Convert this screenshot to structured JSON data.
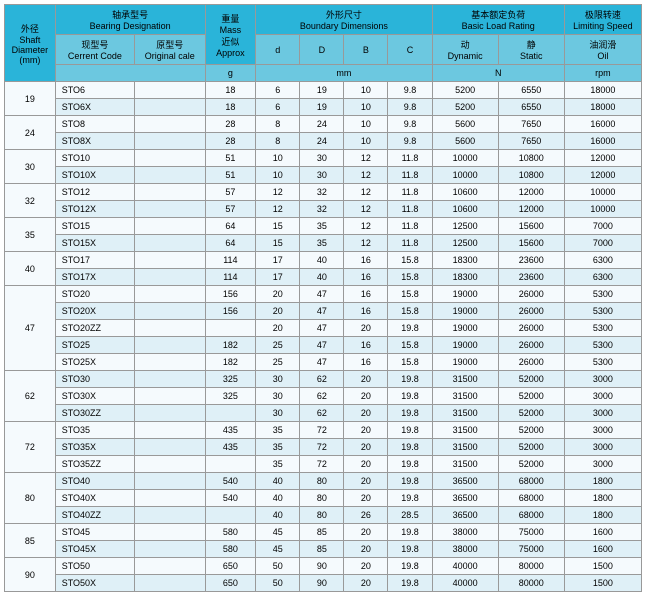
{
  "headers": {
    "shaft_cn": "外径",
    "shaft_en1": "Shaft",
    "shaft_en2": "Diameter",
    "shaft_unit": "(mm)",
    "bearing_cn": "轴承型号",
    "bearing_en": "Bearing Designation",
    "current_cn": "现型号",
    "current_en": "Cerrent Code",
    "original_cn": "原型号",
    "original_en": "Original cale",
    "mass_cn": "重量",
    "mass_en1": "Mass",
    "mass_cn2": "近似",
    "mass_en2": "Approx",
    "dims_cn": "外形尺寸",
    "dims_en": "Boundary Dimensions",
    "d": "d",
    "D": "D",
    "B": "B",
    "C": "C",
    "load_cn": "基本额定负荷",
    "load_en": "Basic Load Rating",
    "dyn_cn": "动",
    "dyn_en": "Dynamic",
    "stat_cn": "静",
    "stat_en": "Static",
    "speed_cn": "极限转速",
    "speed_en": "Limiting Speed",
    "oil_cn": "油润滑",
    "oil_en": "Oil",
    "g": "g",
    "mm": "mm",
    "N": "N",
    "rpm": "rpm"
  },
  "groups": [
    {
      "dia": "19",
      "rows": [
        {
          "code": "STO6",
          "mass": "18",
          "d": "6",
          "D": "19",
          "B": "10",
          "C": "9.8",
          "dyn": "5200",
          "stat": "6550",
          "rpm": "18000"
        },
        {
          "code": "STO6X",
          "mass": "18",
          "d": "6",
          "D": "19",
          "B": "10",
          "C": "9.8",
          "dyn": "5200",
          "stat": "6550",
          "rpm": "18000"
        }
      ]
    },
    {
      "dia": "24",
      "rows": [
        {
          "code": "STO8",
          "mass": "28",
          "d": "8",
          "D": "24",
          "B": "10",
          "C": "9.8",
          "dyn": "5600",
          "stat": "7650",
          "rpm": "16000"
        },
        {
          "code": "STO8X",
          "mass": "28",
          "d": "8",
          "D": "24",
          "B": "10",
          "C": "9.8",
          "dyn": "5600",
          "stat": "7650",
          "rpm": "16000"
        }
      ]
    },
    {
      "dia": "30",
      "rows": [
        {
          "code": "STO10",
          "mass": "51",
          "d": "10",
          "D": "30",
          "B": "12",
          "C": "11.8",
          "dyn": "10000",
          "stat": "10800",
          "rpm": "12000"
        },
        {
          "code": "STO10X",
          "mass": "51",
          "d": "10",
          "D": "30",
          "B": "12",
          "C": "11.8",
          "dyn": "10000",
          "stat": "10800",
          "rpm": "12000"
        }
      ]
    },
    {
      "dia": "32",
      "rows": [
        {
          "code": "STO12",
          "mass": "57",
          "d": "12",
          "D": "32",
          "B": "12",
          "C": "11.8",
          "dyn": "10600",
          "stat": "12000",
          "rpm": "10000"
        },
        {
          "code": "STO12X",
          "mass": "57",
          "d": "12",
          "D": "32",
          "B": "12",
          "C": "11.8",
          "dyn": "10600",
          "stat": "12000",
          "rpm": "10000"
        }
      ]
    },
    {
      "dia": "35",
      "rows": [
        {
          "code": "STO15",
          "mass": "64",
          "d": "15",
          "D": "35",
          "B": "12",
          "C": "11.8",
          "dyn": "12500",
          "stat": "15600",
          "rpm": "7000"
        },
        {
          "code": "STO15X",
          "mass": "64",
          "d": "15",
          "D": "35",
          "B": "12",
          "C": "11.8",
          "dyn": "12500",
          "stat": "15600",
          "rpm": "7000"
        }
      ]
    },
    {
      "dia": "40",
      "rows": [
        {
          "code": "STO17",
          "mass": "114",
          "d": "17",
          "D": "40",
          "B": "16",
          "C": "15.8",
          "dyn": "18300",
          "stat": "23600",
          "rpm": "6300"
        },
        {
          "code": "STO17X",
          "mass": "114",
          "d": "17",
          "D": "40",
          "B": "16",
          "C": "15.8",
          "dyn": "18300",
          "stat": "23600",
          "rpm": "6300"
        }
      ]
    },
    {
      "dia": "47",
      "rows": [
        {
          "code": "STO20",
          "mass": "156",
          "d": "20",
          "D": "47",
          "B": "16",
          "C": "15.8",
          "dyn": "19000",
          "stat": "26000",
          "rpm": "5300"
        },
        {
          "code": "STO20X",
          "mass": "156",
          "d": "20",
          "D": "47",
          "B": "16",
          "C": "15.8",
          "dyn": "19000",
          "stat": "26000",
          "rpm": "5300"
        },
        {
          "code": "STO20ZZ",
          "mass": "",
          "d": "20",
          "D": "47",
          "B": "20",
          "C": "19.8",
          "dyn": "19000",
          "stat": "26000",
          "rpm": "5300"
        },
        {
          "code": "STO25",
          "mass": "182",
          "d": "25",
          "D": "47",
          "B": "16",
          "C": "15.8",
          "dyn": "19000",
          "stat": "26000",
          "rpm": "5300"
        },
        {
          "code": "STO25X",
          "mass": "182",
          "d": "25",
          "D": "47",
          "B": "16",
          "C": "15.8",
          "dyn": "19000",
          "stat": "26000",
          "rpm": "5300"
        }
      ]
    },
    {
      "dia": "62",
      "rows": [
        {
          "code": "STO30",
          "mass": "325",
          "d": "30",
          "D": "62",
          "B": "20",
          "C": "19.8",
          "dyn": "31500",
          "stat": "52000",
          "rpm": "3000"
        },
        {
          "code": "STO30X",
          "mass": "325",
          "d": "30",
          "D": "62",
          "B": "20",
          "C": "19.8",
          "dyn": "31500",
          "stat": "52000",
          "rpm": "3000"
        },
        {
          "code": "STO30ZZ",
          "mass": "",
          "d": "30",
          "D": "62",
          "B": "20",
          "C": "19.8",
          "dyn": "31500",
          "stat": "52000",
          "rpm": "3000"
        }
      ]
    },
    {
      "dia": "72",
      "rows": [
        {
          "code": "STO35",
          "mass": "435",
          "d": "35",
          "D": "72",
          "B": "20",
          "C": "19.8",
          "dyn": "31500",
          "stat": "52000",
          "rpm": "3000"
        },
        {
          "code": "STO35X",
          "mass": "435",
          "d": "35",
          "D": "72",
          "B": "20",
          "C": "19.8",
          "dyn": "31500",
          "stat": "52000",
          "rpm": "3000"
        },
        {
          "code": "STO35ZZ",
          "mass": "",
          "d": "35",
          "D": "72",
          "B": "20",
          "C": "19.8",
          "dyn": "31500",
          "stat": "52000",
          "rpm": "3000"
        }
      ]
    },
    {
      "dia": "80",
      "rows": [
        {
          "code": "STO40",
          "mass": "540",
          "d": "40",
          "D": "80",
          "B": "20",
          "C": "19.8",
          "dyn": "36500",
          "stat": "68000",
          "rpm": "1800"
        },
        {
          "code": "STO40X",
          "mass": "540",
          "d": "40",
          "D": "80",
          "B": "20",
          "C": "19.8",
          "dyn": "36500",
          "stat": "68000",
          "rpm": "1800"
        },
        {
          "code": "STO40ZZ",
          "mass": "",
          "d": "40",
          "D": "80",
          "B": "26",
          "C": "28.5",
          "dyn": "36500",
          "stat": "68000",
          "rpm": "1800"
        }
      ]
    },
    {
      "dia": "85",
      "rows": [
        {
          "code": "STO45",
          "mass": "580",
          "d": "45",
          "D": "85",
          "B": "20",
          "C": "19.8",
          "dyn": "38000",
          "stat": "75000",
          "rpm": "1600"
        },
        {
          "code": "STO45X",
          "mass": "580",
          "d": "45",
          "D": "85",
          "B": "20",
          "C": "19.8",
          "dyn": "38000",
          "stat": "75000",
          "rpm": "1600"
        }
      ]
    },
    {
      "dia": "90",
      "rows": [
        {
          "code": "STO50",
          "mass": "650",
          "d": "50",
          "D": "90",
          "B": "20",
          "C": "19.8",
          "dyn": "40000",
          "stat": "80000",
          "rpm": "1500"
        },
        {
          "code": "STO50X",
          "mass": "650",
          "d": "50",
          "D": "90",
          "B": "20",
          "C": "19.8",
          "dyn": "40000",
          "stat": "80000",
          "rpm": "1500"
        }
      ]
    }
  ],
  "colors": {
    "header_bg": "#2ab4d9",
    "subheader_bg": "#6cc8e0",
    "row_even": "#dff0f7",
    "row_odd": "#f5fafd",
    "border": "#999999"
  }
}
